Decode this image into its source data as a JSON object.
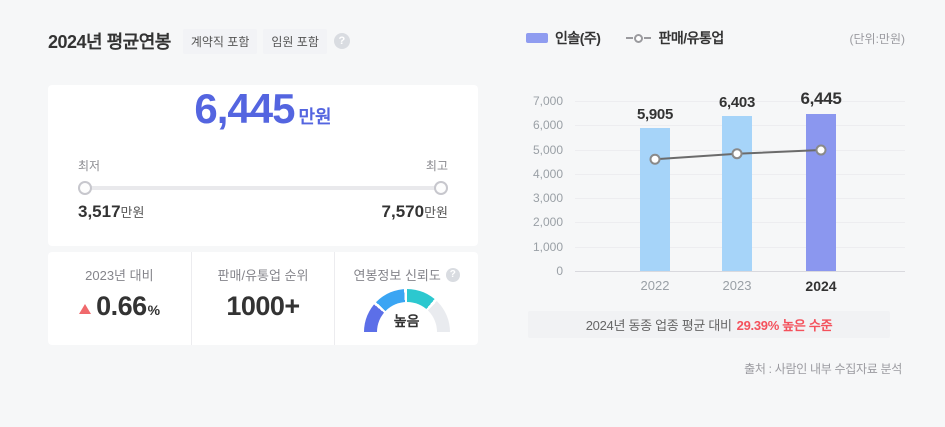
{
  "title": "2024년 평균연봉",
  "badges": [
    "계약직 포함",
    "임원 포함"
  ],
  "salary": {
    "amount": "6,445",
    "unit": "만원",
    "min_label": "최저",
    "max_label": "최고",
    "min_value": "3,517",
    "min_unit": "만원",
    "max_value": "7,570",
    "max_unit": "만원"
  },
  "stats": {
    "yoy": {
      "label": "2023년 대비",
      "value": "0.66",
      "suffix": "%",
      "direction": "up"
    },
    "rank": {
      "label": "판매/유통업 순위",
      "value": "1000+"
    },
    "reliability": {
      "label": "연봉정보 신뢰도",
      "value": "높음"
    }
  },
  "legend": {
    "bar_label": "인솔(주)",
    "line_label": "판매/유통업",
    "unit_note": "(단위:만원)"
  },
  "banner": {
    "text": "2024년 동종 업종 평균 대비",
    "highlight": "29.39% 높은 수준"
  },
  "source": "출처 : 사람인 내부 수집자료 분석",
  "colors": {
    "accent": "#5465e0",
    "bar": "#a6d4f9",
    "bar_highlight": "#8b97ef",
    "line": "#6b6b6b",
    "marker_stroke": "#8a8a8a",
    "up_red": "#f0696c",
    "banner_red": "#f4515c",
    "gauge_segments": [
      "#5c6fe8",
      "#3aa5f3",
      "#2cc8cf",
      "#e9ebef"
    ]
  },
  "chart_data": {
    "type": "bar",
    "categories": [
      "2022",
      "2023",
      "2024"
    ],
    "series": [
      {
        "name": "인솔(주)",
        "type": "bar",
        "values": [
          5905,
          6403,
          6445
        ]
      },
      {
        "name": "판매/유통업",
        "type": "line",
        "values": [
          4600,
          4830,
          4980
        ],
        "note": "estimated from plot"
      }
    ],
    "value_labels": [
      "5,905",
      "6,403",
      "6,445"
    ],
    "yticks": [
      "7,000",
      "6,000",
      "5,000",
      "4,000",
      "3,000",
      "2,000",
      "1,000",
      "0"
    ],
    "ylim": [
      0,
      7000
    ],
    "ytick_interval": 1000,
    "unit": "만원",
    "grid": true,
    "legend_position": "top",
    "highlight_category": "2024"
  }
}
